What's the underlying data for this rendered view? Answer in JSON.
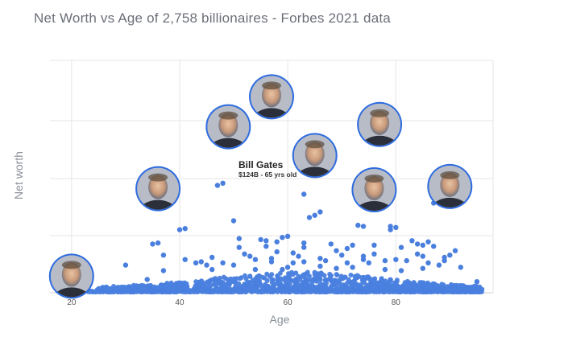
{
  "title": "Net Worth vs Age of 2,758 billionaires - Forbes 2021 data",
  "chart_data": {
    "type": "scatter",
    "title": "Net Worth vs Age of 2,758 billionaires - Forbes 2021 data",
    "xlabel": "Age",
    "ylabel": "Net worth",
    "xlim": [
      16,
      98
    ],
    "ylim": [
      0,
      210
    ],
    "x_ticks": [
      20,
      40,
      60,
      80
    ],
    "grid": true,
    "point_color": "#4a7fde",
    "highlight_color": "#2e6ce0",
    "annotations": [
      {
        "name": "Bill Gates",
        "detail": "$124B - 65 yrs old",
        "age": 65,
        "value": 124
      }
    ],
    "portraits": [
      {
        "name": "person-1",
        "age": 20,
        "value": 15
      },
      {
        "name": "person-2",
        "age": 36,
        "value": 94
      },
      {
        "name": "person-3",
        "age": 49,
        "value": 150
      },
      {
        "name": "person-4",
        "age": 57,
        "value": 177
      },
      {
        "name": "person-5",
        "age": 65,
        "value": 124
      },
      {
        "name": "person-6",
        "age": 77,
        "value": 152
      },
      {
        "name": "person-7",
        "age": 76,
        "value": 93
      },
      {
        "name": "person-8",
        "age": 90,
        "value": 96
      }
    ],
    "points": [
      [
        35,
        44
      ],
      [
        36,
        45
      ],
      [
        41,
        58
      ],
      [
        40,
        57
      ],
      [
        47,
        97
      ],
      [
        48,
        99
      ],
      [
        50,
        65
      ],
      [
        51,
        49
      ],
      [
        51,
        41
      ],
      [
        52,
        35
      ],
      [
        55,
        48
      ],
      [
        56,
        47
      ],
      [
        56,
        42
      ],
      [
        58,
        46
      ],
      [
        58,
        37
      ],
      [
        59,
        50
      ],
      [
        60,
        51
      ],
      [
        61,
        36
      ],
      [
        63,
        89
      ],
      [
        63,
        45
      ],
      [
        63,
        41
      ],
      [
        64,
        68
      ],
      [
        65,
        70
      ],
      [
        66,
        73
      ],
      [
        68,
        44
      ],
      [
        69,
        38
      ],
      [
        71,
        40
      ],
      [
        72,
        43
      ],
      [
        73,
        61
      ],
      [
        74,
        60
      ],
      [
        76,
        43
      ],
      [
        76,
        35
      ],
      [
        79,
        57
      ],
      [
        79,
        60
      ],
      [
        80,
        59
      ],
      [
        81,
        41
      ],
      [
        83,
        47
      ],
      [
        84,
        35
      ],
      [
        84,
        44
      ],
      [
        85,
        43
      ],
      [
        86,
        46
      ],
      [
        87,
        81
      ],
      [
        87,
        42
      ],
      [
        90,
        34
      ],
      [
        91,
        38
      ],
      [
        92,
        23
      ],
      [
        95,
        10
      ],
      [
        30,
        25
      ],
      [
        34,
        12
      ],
      [
        37,
        34
      ],
      [
        37,
        20
      ],
      [
        43,
        27
      ],
      [
        44,
        28
      ],
      [
        46,
        32
      ],
      [
        45,
        25
      ],
      [
        53,
        33
      ],
      [
        54,
        30
      ],
      [
        57,
        28
      ],
      [
        61,
        27
      ],
      [
        62,
        33
      ],
      [
        66,
        31
      ],
      [
        67,
        29
      ],
      [
        70,
        34
      ],
      [
        71,
        27
      ],
      [
        74,
        30
      ],
      [
        75,
        27
      ],
      [
        78,
        29
      ],
      [
        80,
        30
      ],
      [
        82,
        29
      ],
      [
        85,
        33
      ],
      [
        86,
        27
      ],
      [
        88,
        25
      ],
      [
        89,
        29
      ],
      [
        41,
        30
      ],
      [
        46,
        21
      ],
      [
        60,
        23
      ],
      [
        54,
        21
      ],
      [
        72,
        23
      ],
      [
        78,
        21
      ],
      [
        85,
        22
      ],
      [
        48,
        27
      ],
      [
        57,
        31
      ],
      [
        66,
        24
      ],
      [
        74,
        33
      ],
      [
        81,
        20
      ],
      [
        69,
        22
      ],
      [
        63,
        28
      ],
      [
        50,
        25
      ],
      [
        59,
        21
      ],
      [
        89,
        32
      ]
    ]
  }
}
